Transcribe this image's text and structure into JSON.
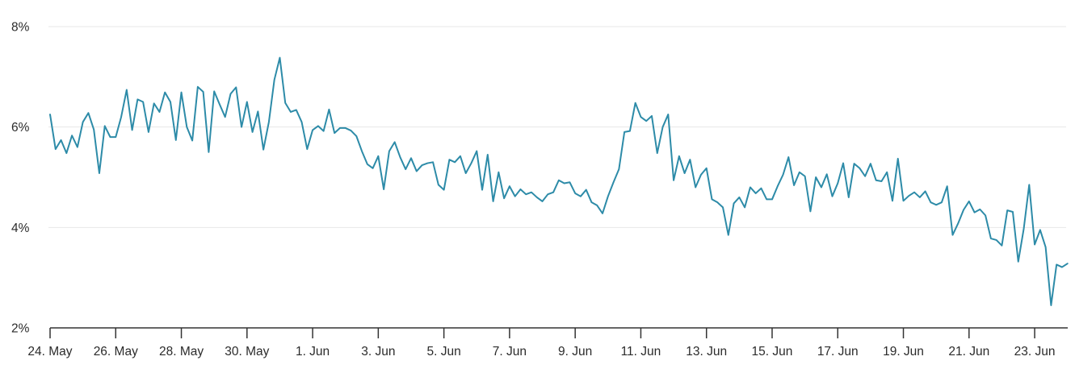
{
  "chart_data": {
    "type": "line",
    "unit": "%",
    "x_axis": {
      "tick_labels": [
        "24. May",
        "26. May",
        "28. May",
        "30. May",
        "1. Jun",
        "3. Jun",
        "5. Jun",
        "7. Jun",
        "9. Jun",
        "11. Jun",
        "13. Jun",
        "15. Jun",
        "17. Jun",
        "19. Jun",
        "21. Jun",
        "23. Jun"
      ],
      "tick_every_days": 2,
      "start_date": "24. May",
      "end_date": "24. Jun",
      "span_days": 31
    },
    "y_axis": {
      "ticks": [
        {
          "label": "8%",
          "value": 8
        },
        {
          "label": "6%",
          "value": 6
        },
        {
          "label": "4%",
          "value": 4
        },
        {
          "label": "2%",
          "value": 2
        }
      ],
      "gridline_values": [
        8,
        6,
        4
      ],
      "min": 2,
      "max": 8
    },
    "legend": "none",
    "grid": "horizontal-only",
    "series": [
      {
        "name": "percentage-series",
        "points_per_day": 6,
        "values": [
          6.25,
          5.56,
          5.74,
          5.48,
          5.83,
          5.6,
          6.1,
          6.28,
          5.95,
          5.08,
          6.02,
          5.8,
          5.8,
          6.2,
          6.74,
          5.94,
          6.55,
          6.5,
          5.9,
          6.47,
          6.3,
          6.69,
          6.5,
          5.74,
          6.69,
          6.0,
          5.73,
          6.8,
          6.7,
          5.5,
          6.71,
          6.45,
          6.2,
          6.66,
          6.79,
          6.0,
          6.5,
          5.9,
          6.31,
          5.55,
          6.1,
          6.94,
          7.38,
          6.48,
          6.3,
          6.34,
          6.1,
          5.56,
          5.94,
          6.02,
          5.92,
          6.35,
          5.88,
          5.98,
          5.98,
          5.93,
          5.82,
          5.52,
          5.26,
          5.18,
          5.42,
          4.76,
          5.52,
          5.7,
          5.4,
          5.16,
          5.38,
          5.12,
          5.24,
          5.28,
          5.3,
          4.85,
          4.75,
          5.35,
          5.3,
          5.42,
          5.08,
          5.28,
          5.52,
          4.75,
          5.45,
          4.52,
          5.1,
          4.58,
          4.82,
          4.62,
          4.76,
          4.66,
          4.7,
          4.6,
          4.52,
          4.66,
          4.7,
          4.94,
          4.88,
          4.9,
          4.68,
          4.62,
          4.75,
          4.5,
          4.44,
          4.28,
          4.62,
          4.9,
          5.16,
          5.9,
          5.92,
          6.48,
          6.2,
          6.12,
          6.22,
          5.48,
          6.0,
          6.25,
          4.94,
          5.42,
          5.08,
          5.35,
          4.8,
          5.05,
          5.18,
          4.56,
          4.5,
          4.4,
          3.85,
          4.48,
          4.6,
          4.4,
          4.8,
          4.68,
          4.78,
          4.56,
          4.56,
          4.82,
          5.05,
          5.4,
          4.84,
          5.1,
          5.02,
          4.32,
          5.0,
          4.8,
          5.06,
          4.62,
          4.88,
          5.28,
          4.6,
          5.27,
          5.18,
          5.02,
          5.27,
          4.94,
          4.92,
          5.1,
          4.53,
          5.37,
          4.53,
          4.63,
          4.7,
          4.6,
          4.72,
          4.5,
          4.45,
          4.5,
          4.82,
          3.85,
          4.08,
          4.35,
          4.52,
          4.3,
          4.36,
          4.24,
          3.78,
          3.75,
          3.64,
          4.34,
          4.31,
          3.32,
          3.97,
          4.85,
          3.66,
          3.95,
          3.61,
          2.45,
          3.26,
          3.21,
          3.28
        ]
      }
    ],
    "colors": {
      "line": "#2D8BA8",
      "grid": "#e7e7e7",
      "axis": "#333333",
      "label": "#2b2b2b",
      "background": "#ffffff"
    }
  }
}
